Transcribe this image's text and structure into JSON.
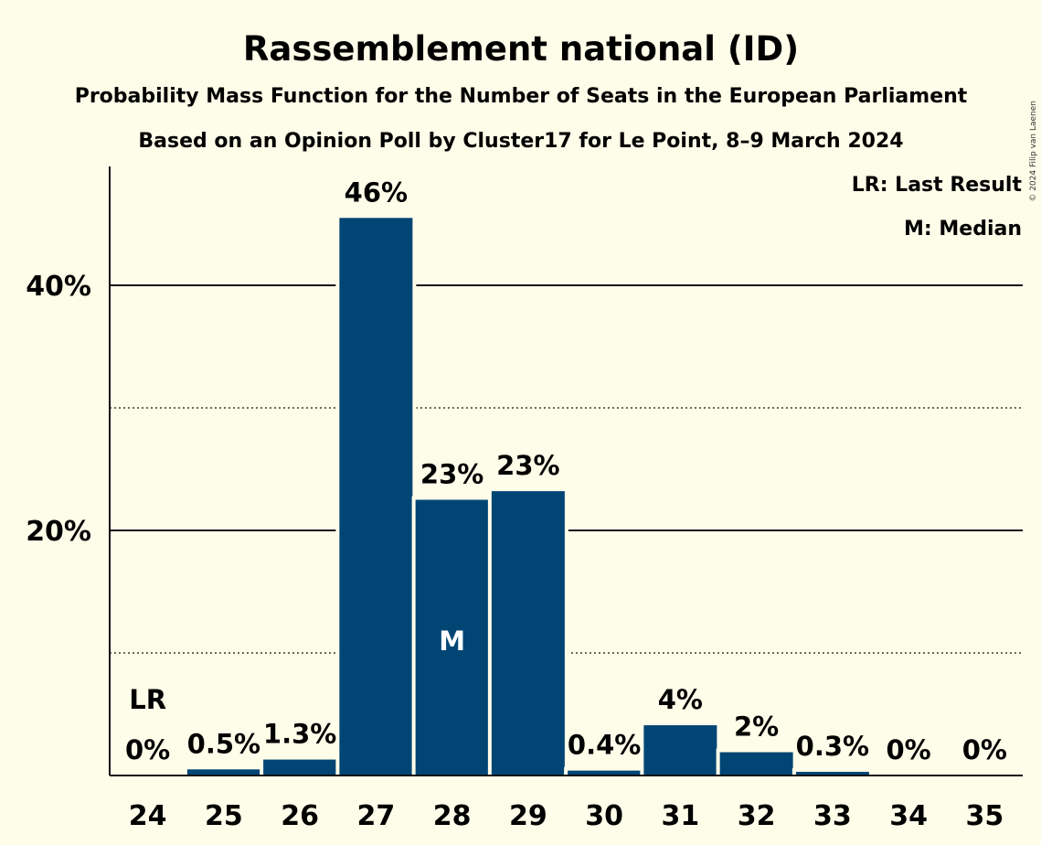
{
  "chart_data": {
    "type": "bar",
    "title": "Rassemblement national (ID)",
    "subtitle": "Probability Mass Function for the Number of Seats in the European Parliament",
    "subtitle2": "Based on an Opinion Poll by Cluster17 for Le Point, 8–9 March 2024",
    "copyright": "© 2024 Filip van Laenen",
    "categories": [
      "24",
      "25",
      "26",
      "27",
      "28",
      "29",
      "30",
      "31",
      "32",
      "33",
      "34",
      "35"
    ],
    "values": [
      0,
      0.5,
      1.3,
      45.5,
      22.5,
      23.2,
      0.4,
      4.1,
      1.9,
      0.3,
      0,
      0
    ],
    "value_labels": [
      "0%",
      "0.5%",
      "1.3%",
      "46%",
      "23%",
      "23%",
      "0.4%",
      "4%",
      "2%",
      "0.3%",
      "0%",
      "0%"
    ],
    "ylim": [
      0,
      50
    ],
    "y_ticks_major": [
      20,
      40
    ],
    "y_tick_labels": [
      "20%",
      "40%"
    ],
    "y_ticks_minor": [
      10,
      30
    ],
    "last_result_label": "LR",
    "last_result_category": "24",
    "median_label": "M",
    "median_category": "28",
    "legend": [
      "LR: Last Result",
      "M: Median"
    ],
    "bar_color": "#004574",
    "background_color": "#fefde9"
  }
}
